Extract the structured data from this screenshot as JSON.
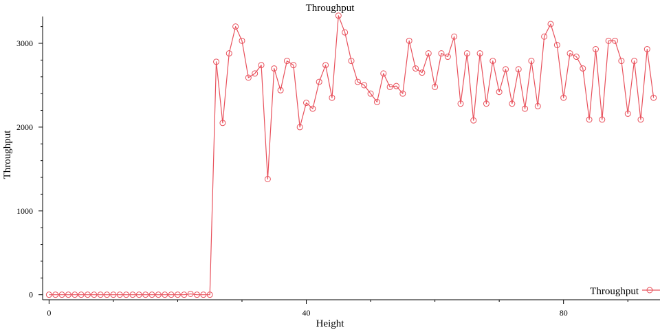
{
  "chart_data": {
    "type": "line",
    "title": "Throughput",
    "xlabel": "Height",
    "ylabel": "Throughput",
    "xlim": [
      -1,
      95
    ],
    "ylim": [
      -60,
      3320
    ],
    "xticks": [
      0,
      40,
      80
    ],
    "yticks": [
      0,
      1000,
      2000,
      3000
    ],
    "grid": false,
    "legend_position": "bottom-right",
    "color": "#e8505b",
    "marker": "circle",
    "series": [
      {
        "name": "Throughput",
        "x": [
          0,
          1,
          2,
          3,
          4,
          5,
          6,
          7,
          8,
          9,
          10,
          11,
          12,
          13,
          14,
          15,
          16,
          17,
          18,
          19,
          20,
          21,
          22,
          23,
          24,
          25,
          26,
          27,
          28,
          29,
          30,
          31,
          32,
          33,
          34,
          35,
          36,
          37,
          38,
          39,
          40,
          41,
          42,
          43,
          44,
          45,
          46,
          47,
          48,
          49,
          50,
          51,
          52,
          53,
          54,
          55,
          56,
          57,
          58,
          59,
          60,
          61,
          62,
          63,
          64,
          65,
          66,
          67,
          68,
          69,
          70,
          71,
          72,
          73,
          74,
          75,
          76,
          77,
          78,
          79,
          80,
          81,
          82,
          83,
          84,
          85,
          86,
          87,
          88,
          89,
          90,
          91,
          92,
          93,
          94
        ],
        "values": [
          0,
          0,
          0,
          0,
          0,
          0,
          0,
          0,
          0,
          0,
          0,
          0,
          0,
          0,
          0,
          0,
          0,
          0,
          0,
          0,
          0,
          0,
          10,
          0,
          0,
          0,
          2780,
          2050,
          2880,
          3200,
          3030,
          2590,
          2640,
          2740,
          1380,
          2700,
          2440,
          2790,
          2740,
          2000,
          2290,
          2220,
          2540,
          2740,
          2350,
          3330,
          3130,
          2790,
          2540,
          2500,
          2400,
          2300,
          2640,
          2480,
          2490,
          2400,
          3030,
          2700,
          2650,
          2880,
          2480,
          2880,
          2840,
          3080,
          2280,
          2880,
          2080,
          2880,
          2280,
          2790,
          2420,
          2690,
          2280,
          2690,
          2220,
          2790,
          2250,
          3080,
          3230,
          2980,
          2350,
          2880,
          2840,
          2700,
          2090,
          2930,
          2090,
          3030,
          3030,
          2790,
          2160,
          2790,
          2090,
          2930,
          2350
        ]
      }
    ]
  }
}
